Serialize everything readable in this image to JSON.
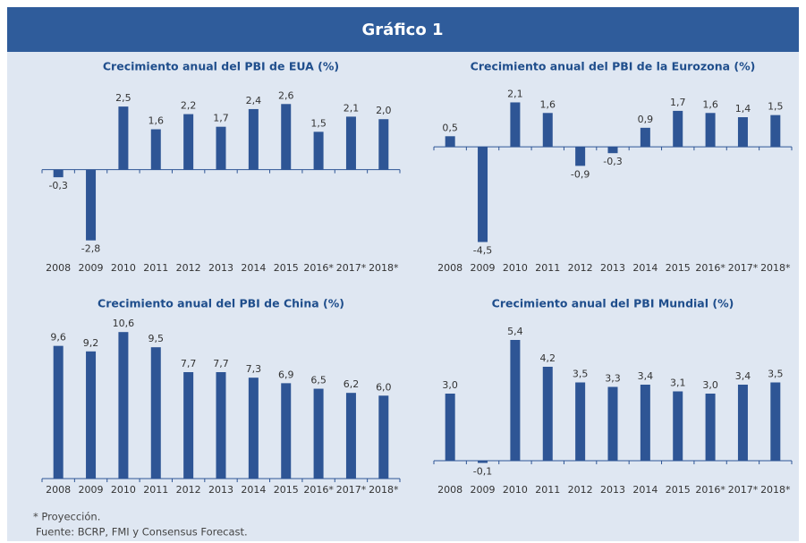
{
  "header": {
    "title": "Gráfico 1"
  },
  "chart_data": [
    {
      "type": "bar",
      "title": "Crecimiento anual del PBI de EUA (%)",
      "color": "#2e5595",
      "categories": [
        "2008",
        "2009",
        "2010",
        "2011",
        "2012",
        "2013",
        "2014",
        "2015",
        "2016*",
        "2017*",
        "2018*"
      ],
      "values": [
        -0.3,
        -2.8,
        2.5,
        1.6,
        2.2,
        1.7,
        2.4,
        2.6,
        1.5,
        2.1,
        2.0
      ],
      "value_labels": [
        "-0,3",
        "-2,8",
        "2,5",
        "1,6",
        "2,2",
        "1,7",
        "2,4",
        "2,6",
        "1,5",
        "2,1",
        "2,0"
      ],
      "ylim": [
        -3.2,
        3.0
      ]
    },
    {
      "type": "bar",
      "title": "Crecimiento anual del PBI de la Eurozona (%)",
      "color": "#2e5595",
      "categories": [
        "2008",
        "2009",
        "2010",
        "2011",
        "2012",
        "2013",
        "2014",
        "2015",
        "2016*",
        "2017*",
        "2018*"
      ],
      "values": [
        0.5,
        -4.5,
        2.1,
        1.6,
        -0.9,
        -0.3,
        0.9,
        1.7,
        1.6,
        1.4,
        1.5
      ],
      "value_labels": [
        "0,5",
        "-4,5",
        "2,1",
        "1,6",
        "-0,9",
        "-0,3",
        "0,9",
        "1,7",
        "1,6",
        "1,4",
        "1,5"
      ],
      "ylim": [
        -4.9,
        2.5
      ]
    },
    {
      "type": "bar",
      "title": "Crecimiento anual del PBI de China (%)",
      "color": "#2e5595",
      "categories": [
        "2008",
        "2009",
        "2010",
        "2011",
        "2012",
        "2013",
        "2014",
        "2015",
        "2016*",
        "2017*",
        "2018*"
      ],
      "values": [
        9.6,
        9.2,
        10.6,
        9.5,
        7.7,
        7.7,
        7.3,
        6.9,
        6.5,
        6.2,
        6.0
      ],
      "value_labels": [
        "9,6",
        "9,2",
        "10,6",
        "9,5",
        "7,7",
        "7,7",
        "7,3",
        "6,9",
        "6,5",
        "6,2",
        "6,0"
      ],
      "ylim": [
        0,
        11
      ]
    },
    {
      "type": "bar",
      "title": "Crecimiento anual del PBI Mundial (%)",
      "color": "#2e5595",
      "categories": [
        "2008",
        "2009",
        "2010",
        "2011",
        "2012",
        "2013",
        "2014",
        "2015",
        "2016*",
        "2017*",
        "2018*"
      ],
      "values": [
        3.0,
        -0.1,
        5.4,
        4.2,
        3.5,
        3.3,
        3.4,
        3.1,
        3.0,
        3.4,
        3.5
      ],
      "value_labels": [
        "3,0",
        "-0,1",
        "5,4",
        "4,2",
        "3,5",
        "3,3",
        "3,4",
        "3,1",
        "3,0",
        "3,4",
        "3,5"
      ],
      "ylim": [
        -0.8,
        6.0
      ]
    }
  ],
  "notes": [
    "* Proyección.",
    "Fuente: BCRP, FMI y Consensus Forecast."
  ]
}
